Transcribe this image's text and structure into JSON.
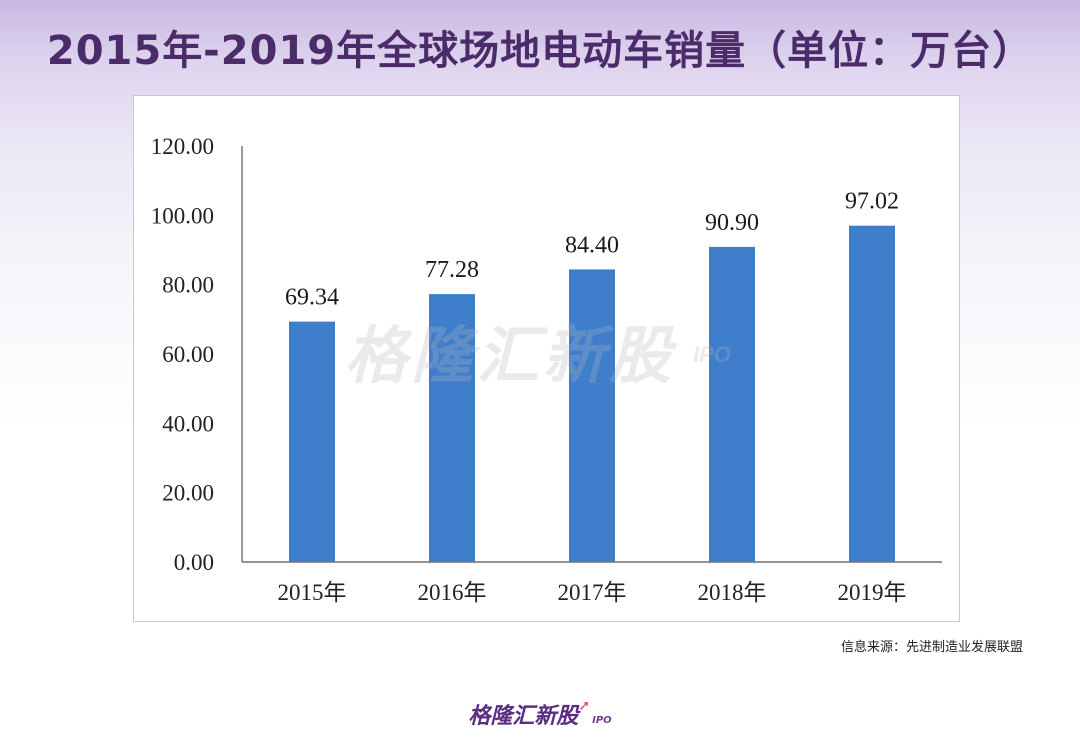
{
  "title": "2015年-2019年全球场地电动车销量（单位：万台）",
  "source": "信息来源：先进制造业发展联盟",
  "watermark": {
    "main": "格隆汇新股",
    "sub": "IPO"
  },
  "footer": {
    "logo": "格隆汇新股",
    "sub": "IPO"
  },
  "colors": {
    "bar": "#3f7ecb",
    "title": "#4b2b6a",
    "footer": "#5a2d82"
  },
  "chart_data": {
    "type": "bar",
    "categories": [
      "2015年",
      "2016年",
      "2017年",
      "2018年",
      "2019年"
    ],
    "values": [
      69.34,
      77.28,
      84.4,
      90.9,
      97.02
    ],
    "value_labels": [
      "69.34",
      "77.28",
      "84.40",
      "90.90",
      "97.02"
    ],
    "ylim": [
      0,
      120
    ],
    "yticks": [
      "0.00",
      "20.00",
      "40.00",
      "60.00",
      "80.00",
      "100.00",
      "120.00"
    ],
    "title": "2015年-2019年全球场地电动车销量（单位：万台）",
    "xlabel": "",
    "ylabel": "",
    "grid": false,
    "legend": "none"
  }
}
